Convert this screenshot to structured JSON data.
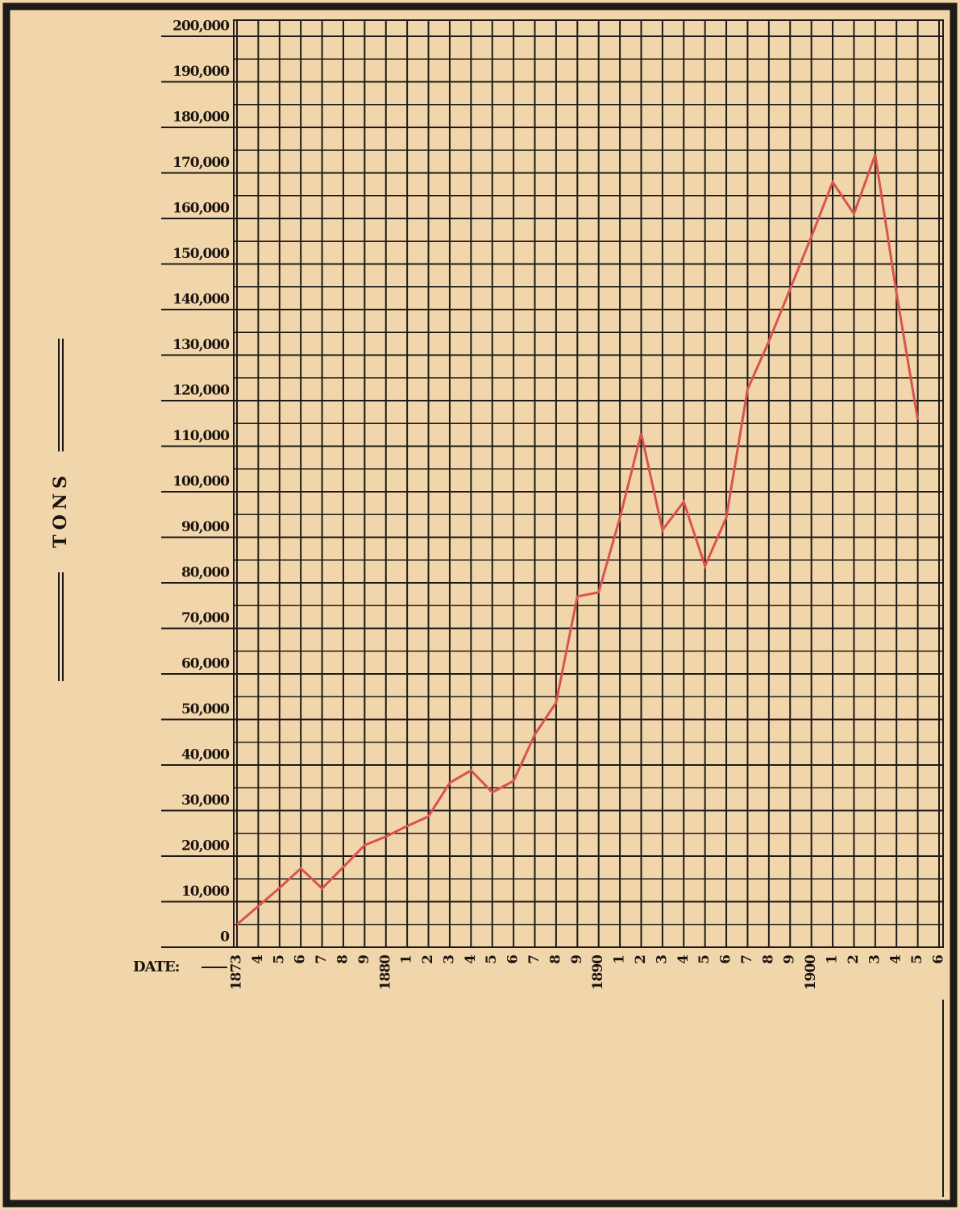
{
  "chart_data": {
    "type": "line",
    "ylabel": "TONS",
    "xlabel": "DATE:",
    "categories": [
      "1873",
      "4",
      "5",
      "6",
      "7",
      "8",
      "9",
      "1880",
      "1",
      "2",
      "3",
      "4",
      "5",
      "6",
      "7",
      "8",
      "9",
      "1890",
      "1",
      "2",
      "3",
      "4",
      "5",
      "6",
      "7",
      "8",
      "9",
      "1900",
      "1",
      "2",
      "3",
      "4",
      "5",
      "6"
    ],
    "series": [
      {
        "name": "Tons",
        "color": "#d9534f",
        "values": [
          5000,
          9000,
          13000,
          17300,
          12900,
          17600,
          22400,
          24300,
          26600,
          28700,
          36100,
          38800,
          34000,
          36500,
          46700,
          53700,
          77000,
          77900,
          94300,
          112800,
          91600,
          97800,
          83700,
          94300,
          122500,
          133000,
          144500,
          156000,
          168000,
          161000,
          174000,
          143600,
          115800,
          null
        ]
      }
    ],
    "ylim": [
      0,
      200000
    ],
    "yticks": [
      0,
      {
        "value": 10000,
        "label": "10,000"
      },
      {
        "value": 20000,
        "label": "20,000"
      },
      {
        "value": 30000,
        "label": "30,000"
      },
      {
        "value": 40000,
        "label": "40,000"
      },
      {
        "value": 50000,
        "label": "50,000"
      },
      {
        "value": 60000,
        "label": "60,000"
      },
      {
        "value": 70000,
        "label": "70,000"
      },
      {
        "value": 80000,
        "label": "80,000"
      },
      {
        "value": 90000,
        "label": "90,000"
      },
      {
        "value": 100000,
        "label": "100,000"
      },
      {
        "value": 110000,
        "label": "110,000"
      },
      {
        "value": 120000,
        "label": "120,000"
      },
      {
        "value": 130000,
        "label": "130,000"
      },
      {
        "value": 140000,
        "label": "140,000"
      },
      {
        "value": 150000,
        "label": "150,000"
      },
      {
        "value": 160000,
        "label": "160,000"
      },
      {
        "value": 170000,
        "label": "170,000"
      },
      {
        "value": 180000,
        "label": "180,000"
      },
      {
        "value": 190000,
        "label": "190,000"
      },
      {
        "value": 200000,
        "label": "200,000"
      }
    ],
    "grid": true
  }
}
